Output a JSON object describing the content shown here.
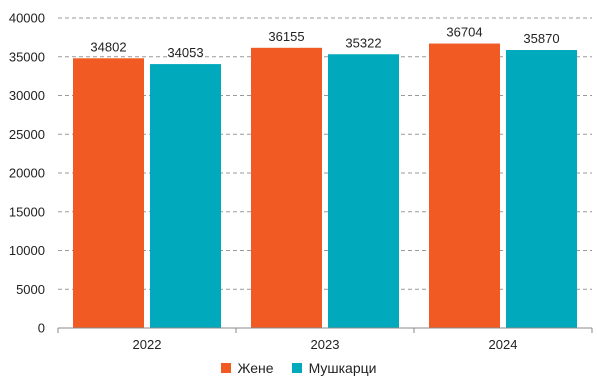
{
  "chart_data": {
    "type": "bar",
    "categories": [
      "2022",
      "2023",
      "2024"
    ],
    "series": [
      {
        "name": "Жене",
        "values": [
          34802,
          36155,
          36704
        ],
        "color": "#F15A22"
      },
      {
        "name": "Мушкарци",
        "values": [
          34053,
          35322,
          35870
        ],
        "color": "#00A9BC"
      }
    ],
    "ylim": [
      0,
      40000
    ],
    "yticks": [
      "0",
      "5000",
      "10000",
      "15000",
      "20000",
      "25000",
      "30000",
      "35000",
      "40000"
    ],
    "grid": true,
    "legend_position": "bottom",
    "data_labels": true
  }
}
